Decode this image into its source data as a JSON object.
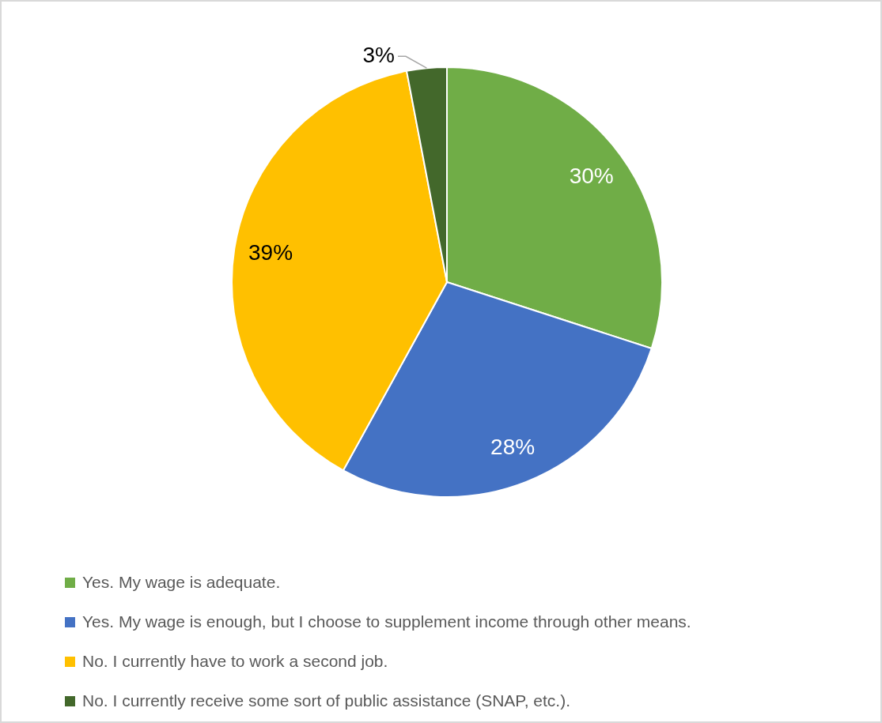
{
  "chart_data": {
    "type": "pie",
    "categories": [
      "Yes. My wage is adequate.",
      "Yes. My wage is enough, but I choose to supplement income through other means.",
      "No. I currently have to work a second job.",
      "No. I currently receive some sort of public assistance (SNAP, etc.)."
    ],
    "values": [
      30,
      28,
      39,
      3
    ],
    "colors": [
      "#70ad47",
      "#4472c4",
      "#ffc000",
      "#43682b"
    ],
    "value_labels": [
      "30%",
      "28%",
      "39%",
      "3%"
    ],
    "legend": "bottom"
  }
}
